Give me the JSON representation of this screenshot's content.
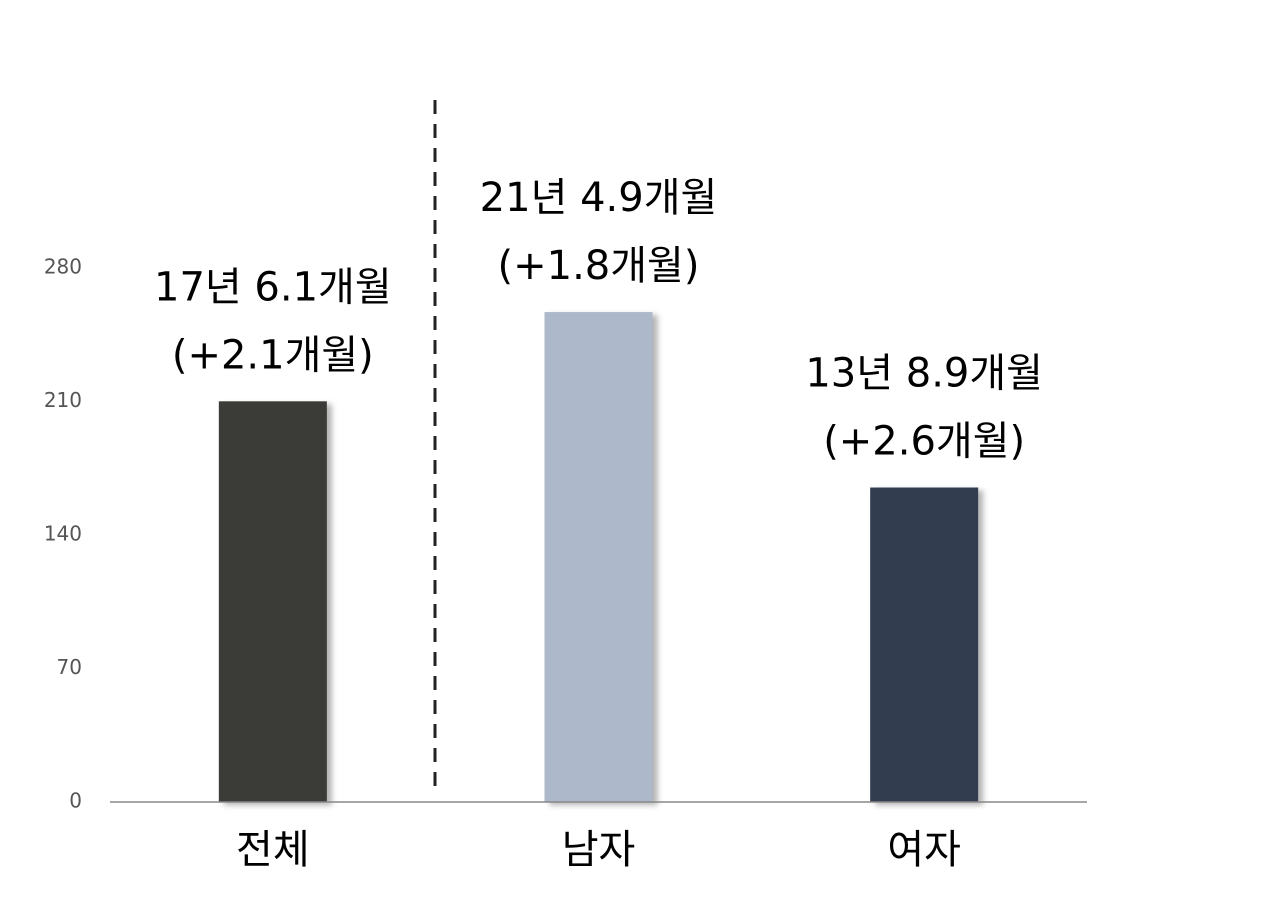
{
  "chart_data": {
    "type": "bar",
    "categories": [
      "전체",
      "남자",
      "여자"
    ],
    "values": [
      210.1,
      256.9,
      164.9
    ],
    "value_labels": [
      "17년 6.1개월",
      "21년 4.9개월",
      "13년 8.9개월"
    ],
    "change_labels": [
      "(+2.1개월)",
      "(+1.8개월)",
      "(+2.6개월)"
    ],
    "colors": [
      "#3a3a38",
      "#adb8ca",
      "#333e50"
    ],
    "ylim": [
      0,
      280
    ],
    "yticks": [
      0,
      70,
      140,
      210,
      280
    ],
    "grid": false
  }
}
